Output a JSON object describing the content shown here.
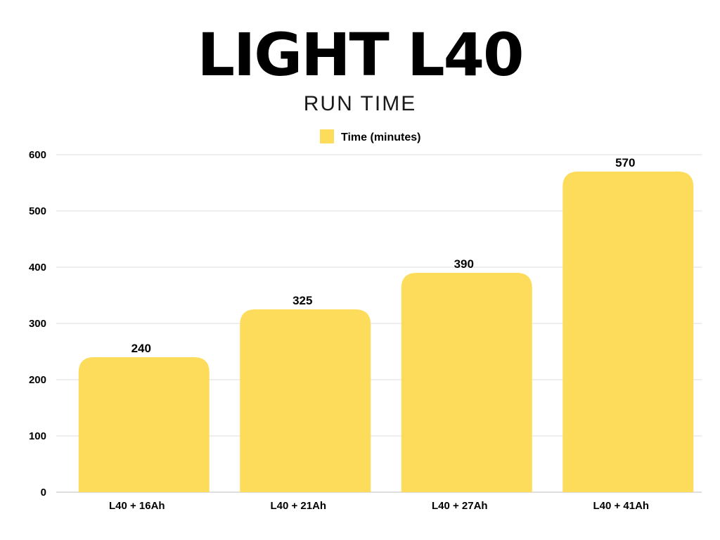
{
  "chart_data": {
    "type": "bar",
    "title": "LIGHT L40",
    "subtitle": "RUN TIME",
    "categories": [
      "L40 + 16Ah",
      "L40 + 21Ah",
      "L40 + 27Ah",
      "L40 + 41Ah"
    ],
    "series": [
      {
        "name": "Time (minutes)",
        "values": [
          240,
          325,
          390,
          570
        ],
        "color": "#FEDC5B"
      }
    ],
    "ylim": [
      0,
      600
    ],
    "yticks": [
      0,
      100,
      200,
      300,
      400,
      500,
      600
    ],
    "grid": true,
    "legend": "top-center",
    "data_labels": true
  }
}
